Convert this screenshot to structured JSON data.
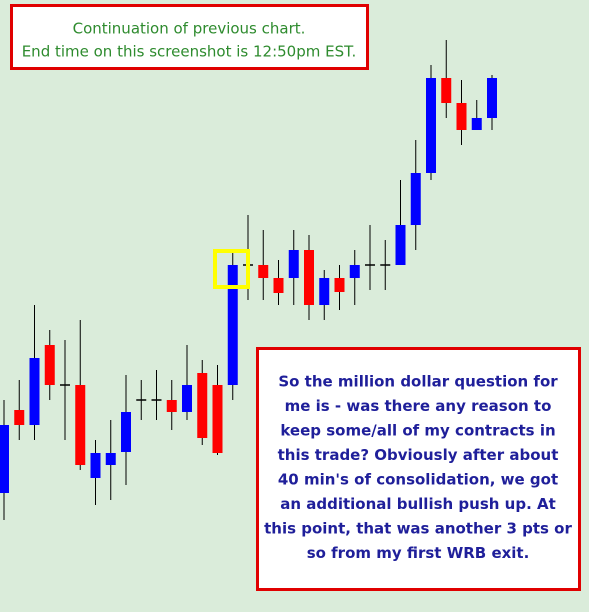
{
  "chart_data": {
    "type": "candlestick",
    "categories": [
      null,
      null,
      null,
      null,
      null,
      null,
      null,
      null,
      null,
      null,
      null,
      null,
      null,
      null,
      null,
      null,
      null,
      null,
      null,
      null,
      null,
      null,
      null,
      null,
      null,
      null,
      null,
      null,
      null,
      null,
      null,
      null,
      null
    ],
    "open": [
      119,
      202,
      187,
      267,
      227,
      227,
      134,
      147,
      160,
      212,
      212,
      212,
      200,
      239,
      227,
      227,
      347,
      347,
      334,
      334,
      362,
      307,
      334,
      334,
      347,
      347,
      347,
      387,
      439,
      534,
      509,
      482,
      494
    ],
    "high": [
      212,
      232,
      307,
      282,
      272,
      292,
      172,
      192,
      237,
      232,
      242,
      232,
      267,
      252,
      247,
      362,
      397,
      382,
      352,
      382,
      377,
      342,
      347,
      362,
      387,
      372,
      432,
      472,
      547,
      572,
      532,
      512,
      537
    ],
    "low": [
      92,
      172,
      172,
      212,
      172,
      142,
      107,
      112,
      127,
      192,
      192,
      182,
      192,
      167,
      157,
      212,
      312,
      312,
      307,
      307,
      292,
      292,
      302,
      307,
      322,
      322,
      347,
      362,
      432,
      494,
      467,
      482,
      482
    ],
    "close": [
      187,
      187,
      254,
      227,
      227,
      147,
      159,
      159,
      200,
      212,
      212,
      200,
      227,
      174,
      159,
      347,
      347,
      334,
      319,
      362,
      307,
      334,
      320,
      347,
      347,
      347,
      387,
      439,
      534,
      509,
      482,
      494,
      534
    ],
    "up_color": "#0000ff",
    "down_color": "#ff0000",
    "doji_color": "#000000",
    "ylim": [
      0,
      612
    ],
    "annotations": {
      "top_note": [
        "Continuation of previous chart.",
        "End time on this screenshot is 12:50pm EST."
      ],
      "bottom_note": [
        "So the million dollar question for",
        "me is - was there any reason to",
        "keep some/all of my contracts in",
        "this trade? Obviously after about",
        "40 min's of consolidation, we got",
        "an additional bullish push up. At",
        "this point, that was another 3 pts or",
        "so from my first WRB exit."
      ]
    }
  }
}
